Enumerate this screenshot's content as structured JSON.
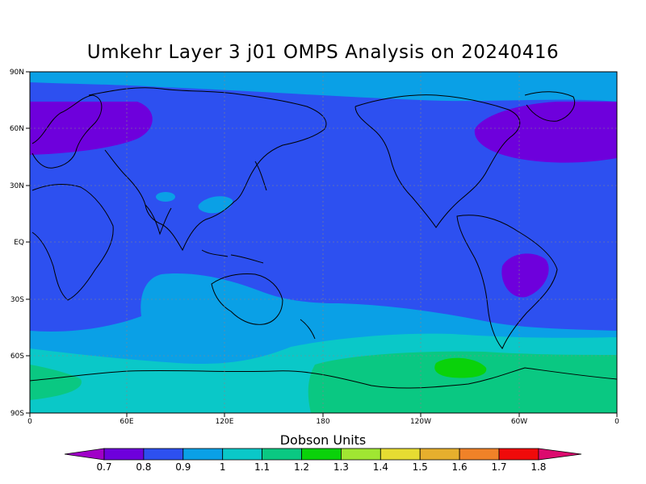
{
  "title": "Umkehr Layer 3 j01 OMPS Analysis on 20240416",
  "chart_data": {
    "type": "heatmap",
    "title": "Umkehr Layer 3 j01 OMPS Analysis on 20240416",
    "xlabel": "",
    "ylabel": "",
    "lon_ticks": [
      "0",
      "60E",
      "120E",
      "180",
      "120W",
      "60W",
      "0"
    ],
    "lat_ticks": [
      "90N",
      "60N",
      "30N",
      "EQ",
      "30S",
      "60S",
      "90S"
    ],
    "colorbar": {
      "title": "Dobson Units",
      "levels": [
        "0.7",
        "0.8",
        "0.9",
        "1",
        "1.1",
        "1.2",
        "1.3",
        "1.4",
        "1.5",
        "1.6",
        "1.7",
        "1.8"
      ],
      "colors": [
        "#a000c8",
        "#6e00dc",
        "#2d50f0",
        "#0aa0e6",
        "#0ac8c8",
        "#0ac882",
        "#0ad20a",
        "#a0e632",
        "#e6dc32",
        "#e6af2d",
        "#f08228",
        "#f00a0a",
        "#dc0a6e"
      ]
    },
    "regions": [
      {
        "name": "polar north band",
        "value_range": "0.9-1.0"
      },
      {
        "name": "mid-latitudes/tropics",
        "value_range": "0.8-0.9"
      },
      {
        "name": "northern Europe/Asia",
        "value_range": "0.7-0.8"
      },
      {
        "name": "eastern North America/Atlantic",
        "value_range": "0.7-0.8"
      },
      {
        "name": "South America",
        "value_range": "0.7-0.8"
      },
      {
        "name": "southern mid-latitudes",
        "value_range": "0.9-1.0"
      },
      {
        "name": "Southern Ocean",
        "value_range": "1.0-1.2"
      },
      {
        "name": "Antarctic Pacific sector",
        "value_range": "1.2-1.3"
      }
    ]
  }
}
